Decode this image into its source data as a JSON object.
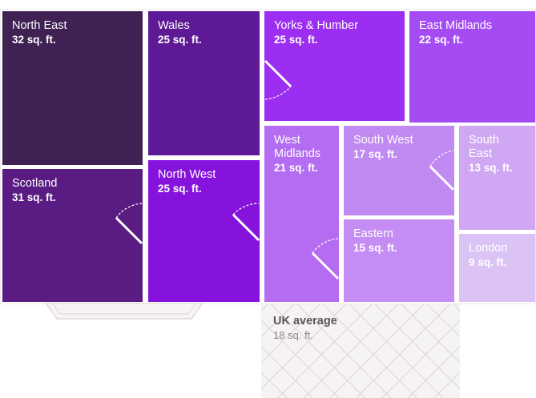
{
  "rooms": [
    {
      "id": "north-east",
      "name": "North East",
      "value": "32 sq. ft.",
      "color": "#3f2153"
    },
    {
      "id": "wales",
      "name": "Wales",
      "value": "25 sq. ft.",
      "color": "#5e1a96"
    },
    {
      "id": "yorks-humber",
      "name": "Yorks & Humber",
      "value": "25 sq. ft.",
      "color": "#9b2ef0"
    },
    {
      "id": "east-midlands",
      "name": "East Midlands",
      "value": "22 sq. ft.",
      "color": "#a54bf3"
    },
    {
      "id": "scotland",
      "name": "Scotland",
      "value": "31 sq. ft.",
      "color": "#5a1b82"
    },
    {
      "id": "north-west",
      "name": "North West",
      "value": "25 sq. ft.",
      "color": "#8513dc"
    },
    {
      "id": "west-midlands",
      "name": "West Midlands",
      "value": "21 sq. ft.",
      "color": "#b46df2"
    },
    {
      "id": "south-west",
      "name": "South West",
      "value": "17 sq. ft.",
      "color": "#c189f2"
    },
    {
      "id": "south-east",
      "name": "South East",
      "value": "13 sq. ft.",
      "color": "#cfa7f3"
    },
    {
      "id": "eastern",
      "name": "Eastern",
      "value": "15 sq. ft.",
      "color": "#c58cf3"
    },
    {
      "id": "london",
      "name": "London",
      "value": "9 sq. ft.",
      "color": "#dcc3f6"
    }
  ],
  "average": {
    "name": "UK average",
    "value": "18 sq. ft."
  },
  "colors": {
    "wall": "#ffffff",
    "outline": "#e6dfe0",
    "tile": "#dcd6d6"
  }
}
